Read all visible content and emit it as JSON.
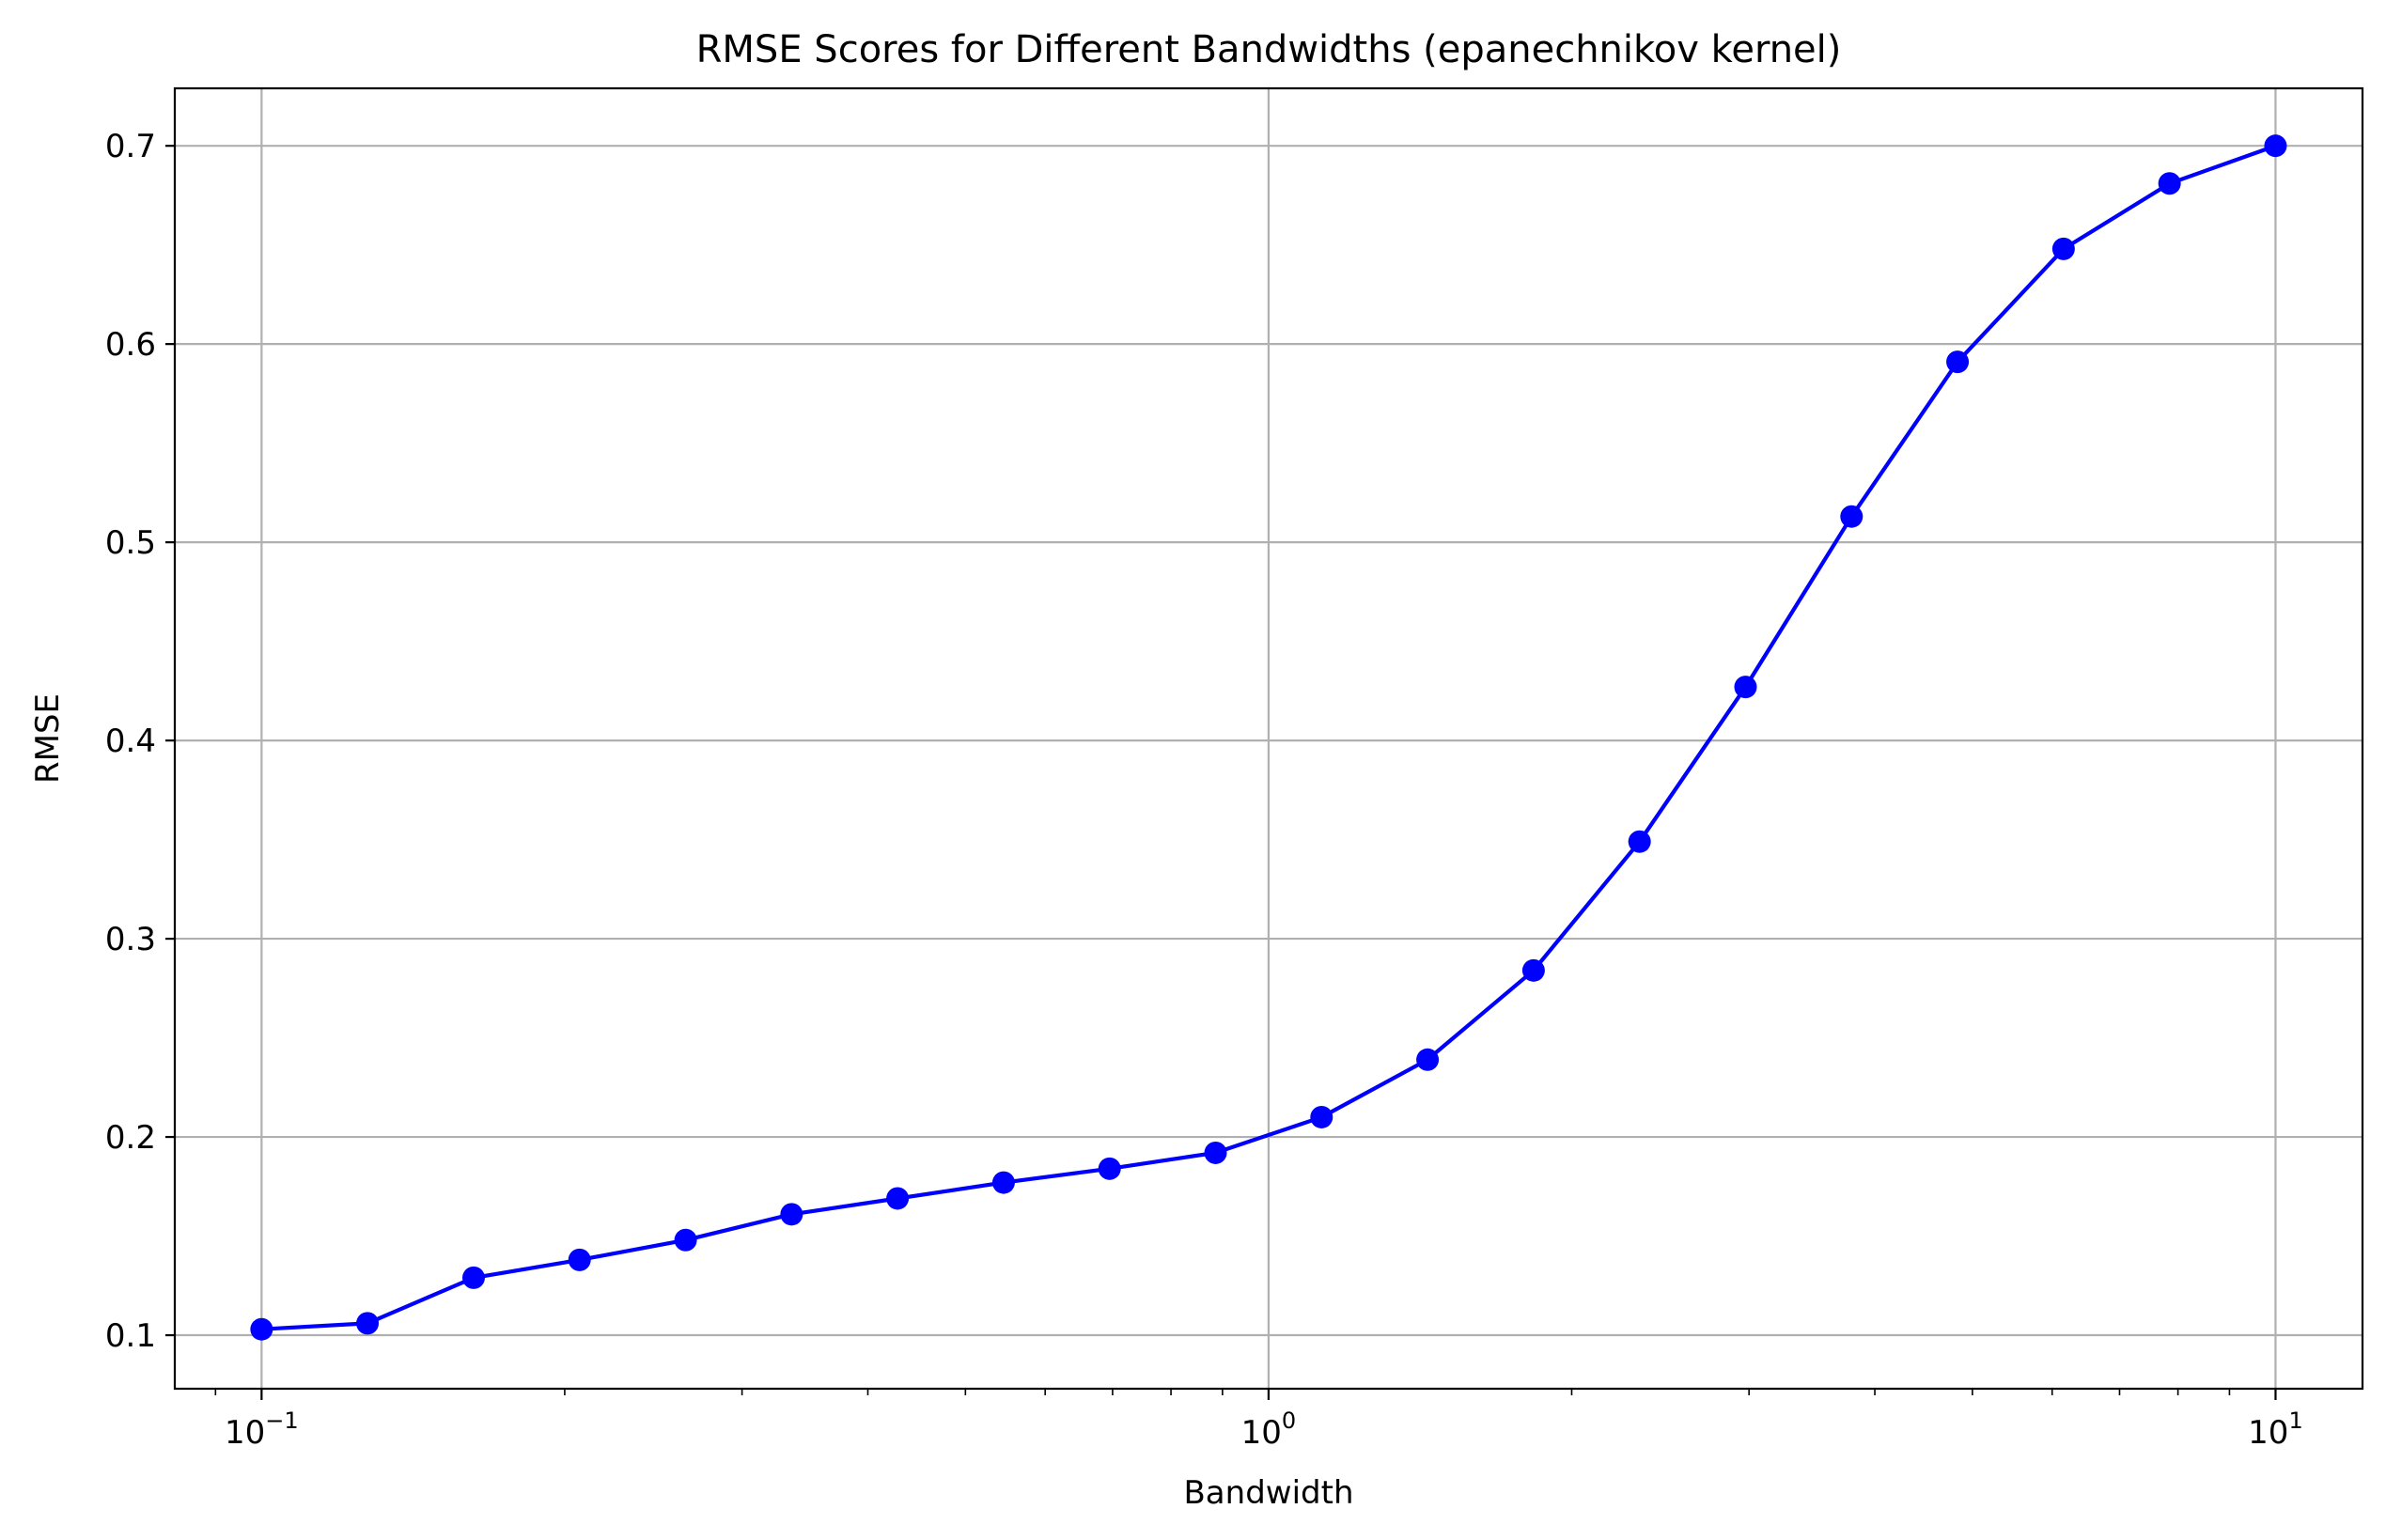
{
  "chart_data": {
    "type": "line",
    "title": "RMSE Scores for Different Bandwidths (epanechnikov kernel)",
    "xlabel": "Bandwidth",
    "ylabel": "RMSE",
    "xscale": "log",
    "xlim": [
      0.082,
      12.2
    ],
    "ylim": [
      0.073,
      0.729
    ],
    "grid": true,
    "x_ticks": [
      {
        "value": 0.1,
        "base": "10",
        "exp": "−1"
      },
      {
        "value": 1,
        "base": "10",
        "exp": "0"
      },
      {
        "value": 10,
        "base": "10",
        "exp": "1"
      }
    ],
    "y_ticks": [
      {
        "value": 0.1,
        "label": "0.1"
      },
      {
        "value": 0.2,
        "label": "0.2"
      },
      {
        "value": 0.3,
        "label": "0.3"
      },
      {
        "value": 0.4,
        "label": "0.4"
      },
      {
        "value": 0.5,
        "label": "0.5"
      },
      {
        "value": 0.6,
        "label": "0.6"
      },
      {
        "value": 0.7,
        "label": "0.7"
      }
    ],
    "series": [
      {
        "color": "#0000ff",
        "marker": "circle",
        "x": [
          0.1,
          0.1274,
          0.1624,
          0.2069,
          0.2637,
          0.336,
          0.4281,
          0.5456,
          0.6952,
          0.8859,
          1.1288,
          1.4384,
          1.833,
          2.3357,
          2.9764,
          3.7927,
          4.8329,
          6.1585,
          7.8476,
          10.0
        ],
        "y": [
          0.103,
          0.106,
          0.129,
          0.138,
          0.148,
          0.161,
          0.169,
          0.177,
          0.184,
          0.192,
          0.21,
          0.239,
          0.284,
          0.349,
          0.427,
          0.513,
          0.591,
          0.648,
          0.681,
          0.7
        ]
      }
    ]
  }
}
